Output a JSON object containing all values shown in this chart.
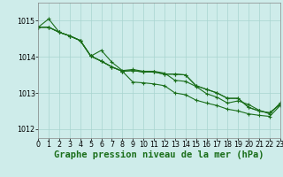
{
  "title": "Graphe pression niveau de la mer (hPa)",
  "bg_color": "#ceecea",
  "grid_color": "#a8d5d0",
  "line_color": "#1a6e1a",
  "xlim": [
    0,
    23
  ],
  "ylim": [
    1011.75,
    1015.5
  ],
  "yticks": [
    1012,
    1013,
    1014,
    1015
  ],
  "xticks": [
    0,
    1,
    2,
    3,
    4,
    5,
    6,
    7,
    8,
    9,
    10,
    11,
    12,
    13,
    14,
    15,
    16,
    17,
    18,
    19,
    20,
    21,
    22,
    23
  ],
  "series1_x": [
    0,
    1,
    2,
    3,
    4,
    5,
    6,
    7,
    8,
    9,
    10,
    11,
    12,
    13,
    14,
    15,
    16,
    17,
    18,
    19,
    20,
    21,
    22,
    23
  ],
  "series1_y": [
    1014.82,
    1014.82,
    1014.68,
    1014.58,
    1014.45,
    1014.02,
    1013.88,
    1013.72,
    1013.6,
    1013.62,
    1013.58,
    1013.58,
    1013.52,
    1013.52,
    1013.5,
    1013.2,
    1013.1,
    1013.0,
    1012.85,
    1012.85,
    1012.6,
    1012.5,
    1012.45,
    1012.68
  ],
  "series2_x": [
    0,
    1,
    2,
    3,
    4,
    5,
    6,
    7,
    8,
    9,
    10,
    11,
    12,
    13,
    14,
    15,
    16,
    17,
    18,
    19,
    20,
    21,
    22,
    23
  ],
  "series2_y": [
    1014.82,
    1014.82,
    1014.68,
    1014.58,
    1014.45,
    1014.02,
    1014.18,
    1013.85,
    1013.62,
    1013.65,
    1013.6,
    1013.6,
    1013.55,
    1013.35,
    1013.32,
    1013.18,
    1012.98,
    1012.88,
    1012.72,
    1012.78,
    1012.68,
    1012.52,
    1012.42,
    1012.72
  ],
  "series3_x": [
    0,
    1,
    2,
    3,
    4,
    5,
    6,
    7,
    8,
    9,
    10,
    11,
    12,
    13,
    14,
    15,
    16,
    17,
    18,
    19,
    20,
    21,
    22,
    23
  ],
  "series3_y": [
    1014.82,
    1015.05,
    1014.68,
    1014.58,
    1014.45,
    1014.02,
    1013.88,
    1013.72,
    1013.6,
    1013.62,
    1013.58,
    1013.58,
    1013.52,
    1013.52,
    1013.5,
    1013.2,
    1013.1,
    1013.0,
    1012.85,
    1012.85,
    1012.6,
    1012.5,
    1012.45,
    1012.68
  ],
  "series4_x": [
    0,
    1,
    2,
    3,
    4,
    5,
    6,
    7,
    8,
    9,
    10,
    11,
    12,
    13,
    14,
    15,
    16,
    17,
    18,
    19,
    20,
    21,
    22,
    23
  ],
  "series4_y": [
    1014.82,
    1014.82,
    1014.68,
    1014.58,
    1014.45,
    1014.02,
    1013.88,
    1013.72,
    1013.6,
    1013.3,
    1013.28,
    1013.25,
    1013.2,
    1013.0,
    1012.95,
    1012.8,
    1012.72,
    1012.65,
    1012.55,
    1012.5,
    1012.42,
    1012.38,
    1012.35,
    1012.65
  ],
  "title_fontsize": 7.5,
  "tick_fontsize": 5.8
}
